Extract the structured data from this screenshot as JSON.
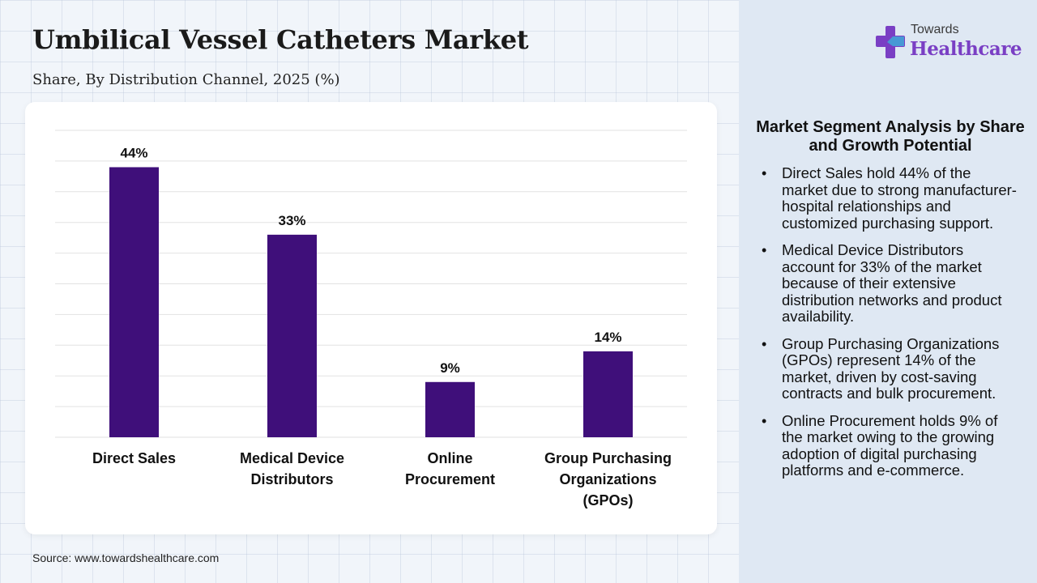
{
  "header": {
    "title": "Umbilical Vessel Catheters Market",
    "subtitle": "Share, By Distribution Channel, 2025 (%)"
  },
  "logo": {
    "line1": "Towards",
    "line2": "Healthcare",
    "icon": "medical-cross-icon",
    "colors": [
      "#7a3fc4",
      "#3fa9d8"
    ]
  },
  "source": "Source: www.towardshealthcare.com",
  "chart_data": {
    "type": "bar",
    "categories": [
      [
        "Direct Sales"
      ],
      [
        "Medical Device",
        "Distributors"
      ],
      [
        "Online",
        "Procurement"
      ],
      [
        "Group Purchasing",
        "Organizations",
        "(GPOs)"
      ]
    ],
    "values": [
      44,
      33,
      9,
      14
    ],
    "data_labels": [
      "44%",
      "33%",
      "9%",
      "14%"
    ],
    "ylim": [
      0,
      50
    ],
    "grid": true,
    "legend": "none",
    "bar_color": "#3f0f7a"
  },
  "analysis": {
    "title": "Market Segment Analysis by Share and Growth Potential",
    "items": [
      "Direct Sales hold 44% of the market due to strong manufacturer-hospital relationships and customized purchasing support.",
      "Medical Device Distributors account for 33% of the market because of their extensive distribution networks and product availability.",
      "Group Purchasing Organizations (GPOs) represent 14% of the market, driven by cost-saving contracts and bulk procurement.",
      "Online Procurement holds 9% of the market owing to the growing adoption of digital purchasing platforms and e-commerce."
    ]
  }
}
